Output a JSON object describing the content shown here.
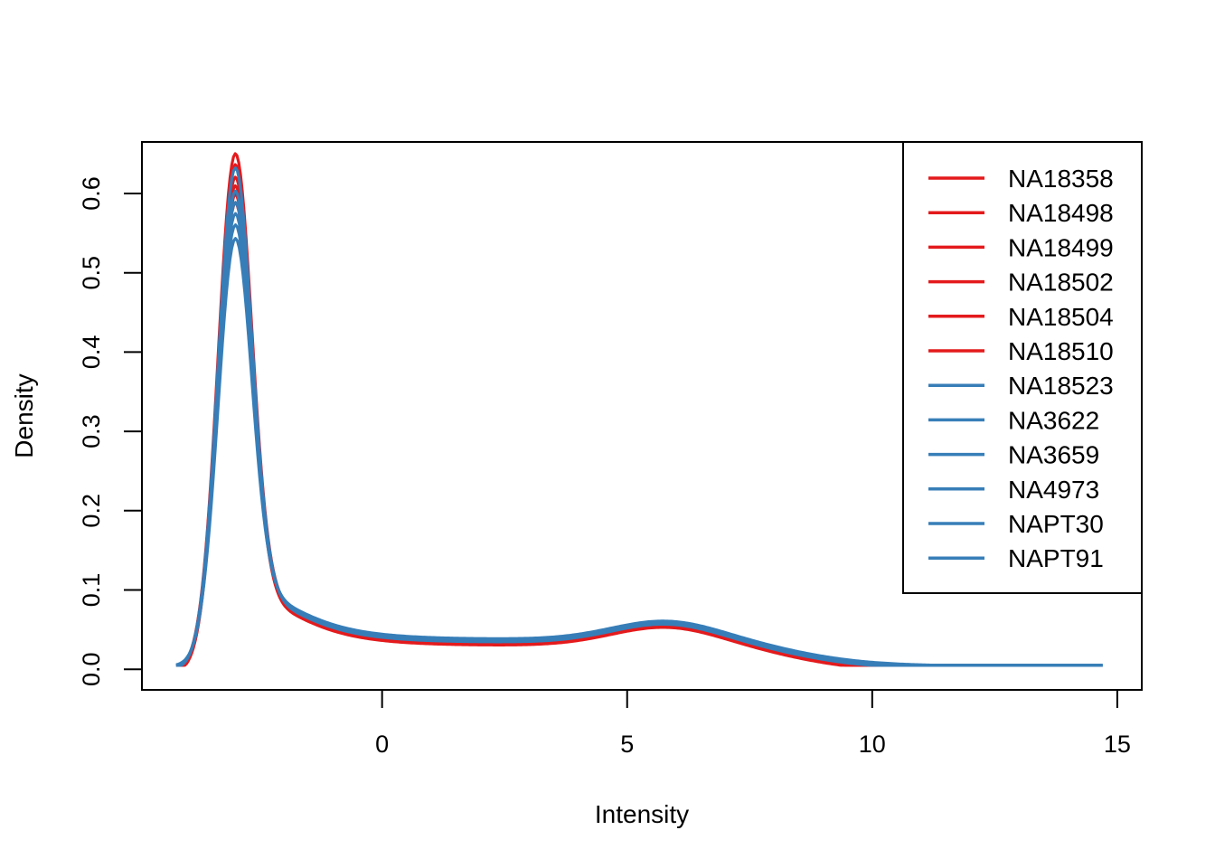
{
  "chart_data": {
    "type": "line",
    "title": "",
    "xlabel": "Intensity",
    "ylabel": "Density",
    "xlim": [
      -4.9,
      15.5
    ],
    "ylim": [
      -0.026,
      0.665
    ],
    "x_ticks": [
      0,
      5,
      10,
      15
    ],
    "x_tick_labels": [
      "0",
      "5",
      "10",
      "15"
    ],
    "y_ticks": [
      0.0,
      0.1,
      0.2,
      0.3,
      0.4,
      0.5,
      0.6
    ],
    "y_tick_labels": [
      "0.0",
      "0.1",
      "0.2",
      "0.3",
      "0.4",
      "0.5",
      "0.6"
    ],
    "grid": false,
    "legend_position": "top-right",
    "colors": {
      "group_a": "#E41A1C",
      "group_b": "#377EB8"
    },
    "series": [
      {
        "name": "NA18358",
        "color": "#E41A1C",
        "peak": 0.638,
        "x_max": 13.5
      },
      {
        "name": "NA18498",
        "color": "#E41A1C",
        "peak": 0.625,
        "x_max": 13.5
      },
      {
        "name": "NA18499",
        "color": "#E41A1C",
        "peak": 0.61,
        "x_max": 13.5
      },
      {
        "name": "NA18502",
        "color": "#E41A1C",
        "peak": 0.6,
        "x_max": 13.5
      },
      {
        "name": "NA18504",
        "color": "#E41A1C",
        "peak": 0.59,
        "x_max": 13.5
      },
      {
        "name": "NA18510",
        "color": "#E41A1C",
        "peak": 0.58,
        "x_max": 13.5
      },
      {
        "name": "NA18523",
        "color": "#377EB8",
        "peak": 0.62,
        "x_max": 14.7
      },
      {
        "name": "NA3622",
        "color": "#377EB8",
        "peak": 0.59,
        "x_max": 14.7
      },
      {
        "name": "NA3659",
        "color": "#377EB8",
        "peak": 0.575,
        "x_max": 14.7
      },
      {
        "name": "NA4973",
        "color": "#377EB8",
        "peak": 0.56,
        "x_max": 14.7
      },
      {
        "name": "NAPT30",
        "color": "#377EB8",
        "peak": 0.545,
        "x_max": 14.7
      },
      {
        "name": "NAPT91",
        "color": "#377EB8",
        "peak": 0.527,
        "x_max": 14.7
      }
    ]
  }
}
